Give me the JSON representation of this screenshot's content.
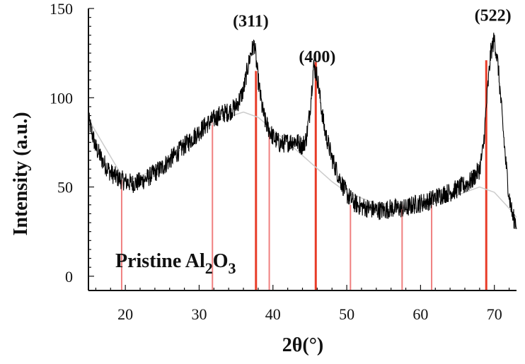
{
  "chart_data": {
    "type": "line",
    "title": "",
    "xlabel": "2θ(°)",
    "ylabel": "Intensity (a.u.)",
    "xlim": [
      15,
      73
    ],
    "ylim": [
      -8,
      150
    ],
    "x_ticks": [
      20,
      30,
      40,
      50,
      60,
      70
    ],
    "y_ticks": [
      0,
      50,
      100,
      150
    ],
    "grid": false,
    "sample_label": {
      "main": "Pristine Al",
      "sub1": "2",
      "mid": "O",
      "sub2": "3"
    },
    "peak_labels": [
      {
        "text": "(311)",
        "x": 37.0,
        "y": 140
      },
      {
        "text": "(400)",
        "x": 46.0,
        "y": 120
      },
      {
        "text": "(522)",
        "x": 69.8,
        "y": 143
      }
    ],
    "series": [
      {
        "x": [
          15,
          16,
          17,
          18,
          19,
          20,
          21,
          22,
          23,
          24,
          25,
          26,
          27,
          28,
          29,
          30,
          31,
          32,
          33,
          34,
          35,
          36,
          36.5,
          37,
          37.5,
          38,
          38.5,
          39,
          40,
          41,
          42,
          43,
          44,
          44.5,
          45,
          45.5,
          46,
          46.5,
          47,
          48,
          49,
          50,
          51,
          52,
          53,
          54,
          55,
          56,
          57,
          58,
          59,
          60,
          61,
          62,
          63,
          64,
          65,
          66,
          67,
          68,
          68.5,
          69,
          69.5,
          70,
          70.5,
          71,
          71.5,
          72,
          72.5,
          73
        ],
        "y": [
          88,
          72,
          64,
          58,
          55,
          53,
          52,
          53,
          55,
          58,
          61,
          65,
          69,
          73,
          77,
          81,
          85,
          88,
          91,
          92,
          95,
          104,
          115,
          125,
          130,
          110,
          95,
          86,
          78,
          74,
          75,
          76,
          73,
          77,
          92,
          118,
          112,
          96,
          82,
          66,
          55,
          46,
          41,
          39,
          38,
          37,
          37,
          38,
          38,
          38,
          40,
          41,
          42,
          44,
          46,
          47,
          49,
          51,
          54,
          60,
          72,
          100,
          125,
          133,
          118,
          92,
          66,
          45,
          33,
          30
        ],
        "background": {
          "x": [
            15,
            20,
            25,
            30,
            33,
            36,
            38,
            40,
            42,
            45,
            48,
            50,
            55,
            60,
            63,
            66,
            68,
            70,
            72,
            73
          ],
          "y": [
            88,
            53,
            61,
            81,
            88,
            92,
            89,
            82,
            75,
            64,
            53,
            47,
            39,
            38,
            42,
            47,
            50,
            47,
            38,
            33
          ]
        },
        "color": "#000000"
      }
    ],
    "reference_lines": {
      "color": "#f08080",
      "strong_color": "#e83c28",
      "positions": [
        19.5,
        31.8,
        37.7,
        39.5,
        45.8,
        50.5,
        57.5,
        61.5,
        68.9
      ],
      "tops": [
        54,
        86,
        115,
        82,
        120,
        40,
        40,
        45,
        121
      ],
      "strong": [
        false,
        false,
        true,
        false,
        true,
        false,
        false,
        false,
        true
      ]
    }
  }
}
